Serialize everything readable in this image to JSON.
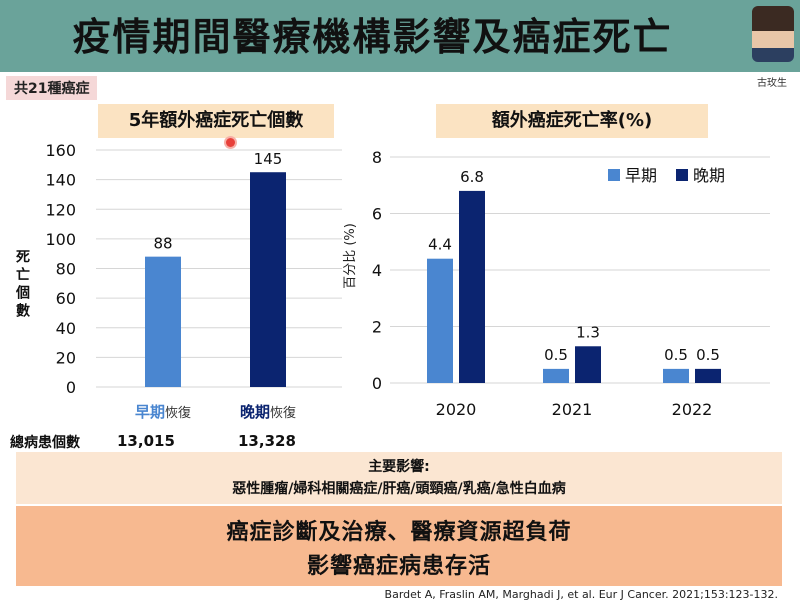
{
  "header": {
    "title": "疫情期間醫療機構影響及癌症死亡",
    "speaker_name": "古玫生"
  },
  "tag_label": "共21種癌症",
  "colors": {
    "early": "#4a86d0",
    "late": "#0b2470",
    "header_bg": "#6aa39a"
  },
  "chart_data": [
    {
      "type": "bar",
      "title": "5年額外癌症死亡個數",
      "ylabel": "死亡個數",
      "ylim": [
        0,
        160
      ],
      "yticks": [
        0,
        20,
        40,
        60,
        80,
        100,
        120,
        140,
        160
      ],
      "categories": [
        {
          "strong": "早期",
          "rest": "恢復"
        },
        {
          "strong": "晚期",
          "rest": "恢復"
        }
      ],
      "values": [
        88,
        145
      ],
      "grid": true
    },
    {
      "type": "bar",
      "title": "額外癌症死亡率(%)",
      "ylabel": "百分比 (%)",
      "ylim": [
        0,
        8
      ],
      "yticks": [
        0,
        2,
        4,
        6,
        8
      ],
      "categories": [
        "2020",
        "2021",
        "2022"
      ],
      "series": [
        {
          "name": "早期",
          "values": [
            4.4,
            0.5,
            0.5
          ]
        },
        {
          "name": "晚期",
          "values": [
            6.8,
            1.3,
            0.5
          ]
        }
      ],
      "legend": "top-right",
      "grid": true
    }
  ],
  "stats": {
    "label": "總病患個數",
    "values": [
      "13,015",
      "13,328"
    ]
  },
  "summary": {
    "heading": "主要影響:",
    "list": "惡性腫瘤/婦科相關癌症/肝癌/頭頸癌/乳癌/急性白血病",
    "line1": "癌症診斷及治療、醫療資源超負荷",
    "line2": "影響癌症病患存活"
  },
  "citation": "Bardet A, Fraslin AM, Marghadi J, et al. Eur J Cancer. 2021;153:123-132."
}
